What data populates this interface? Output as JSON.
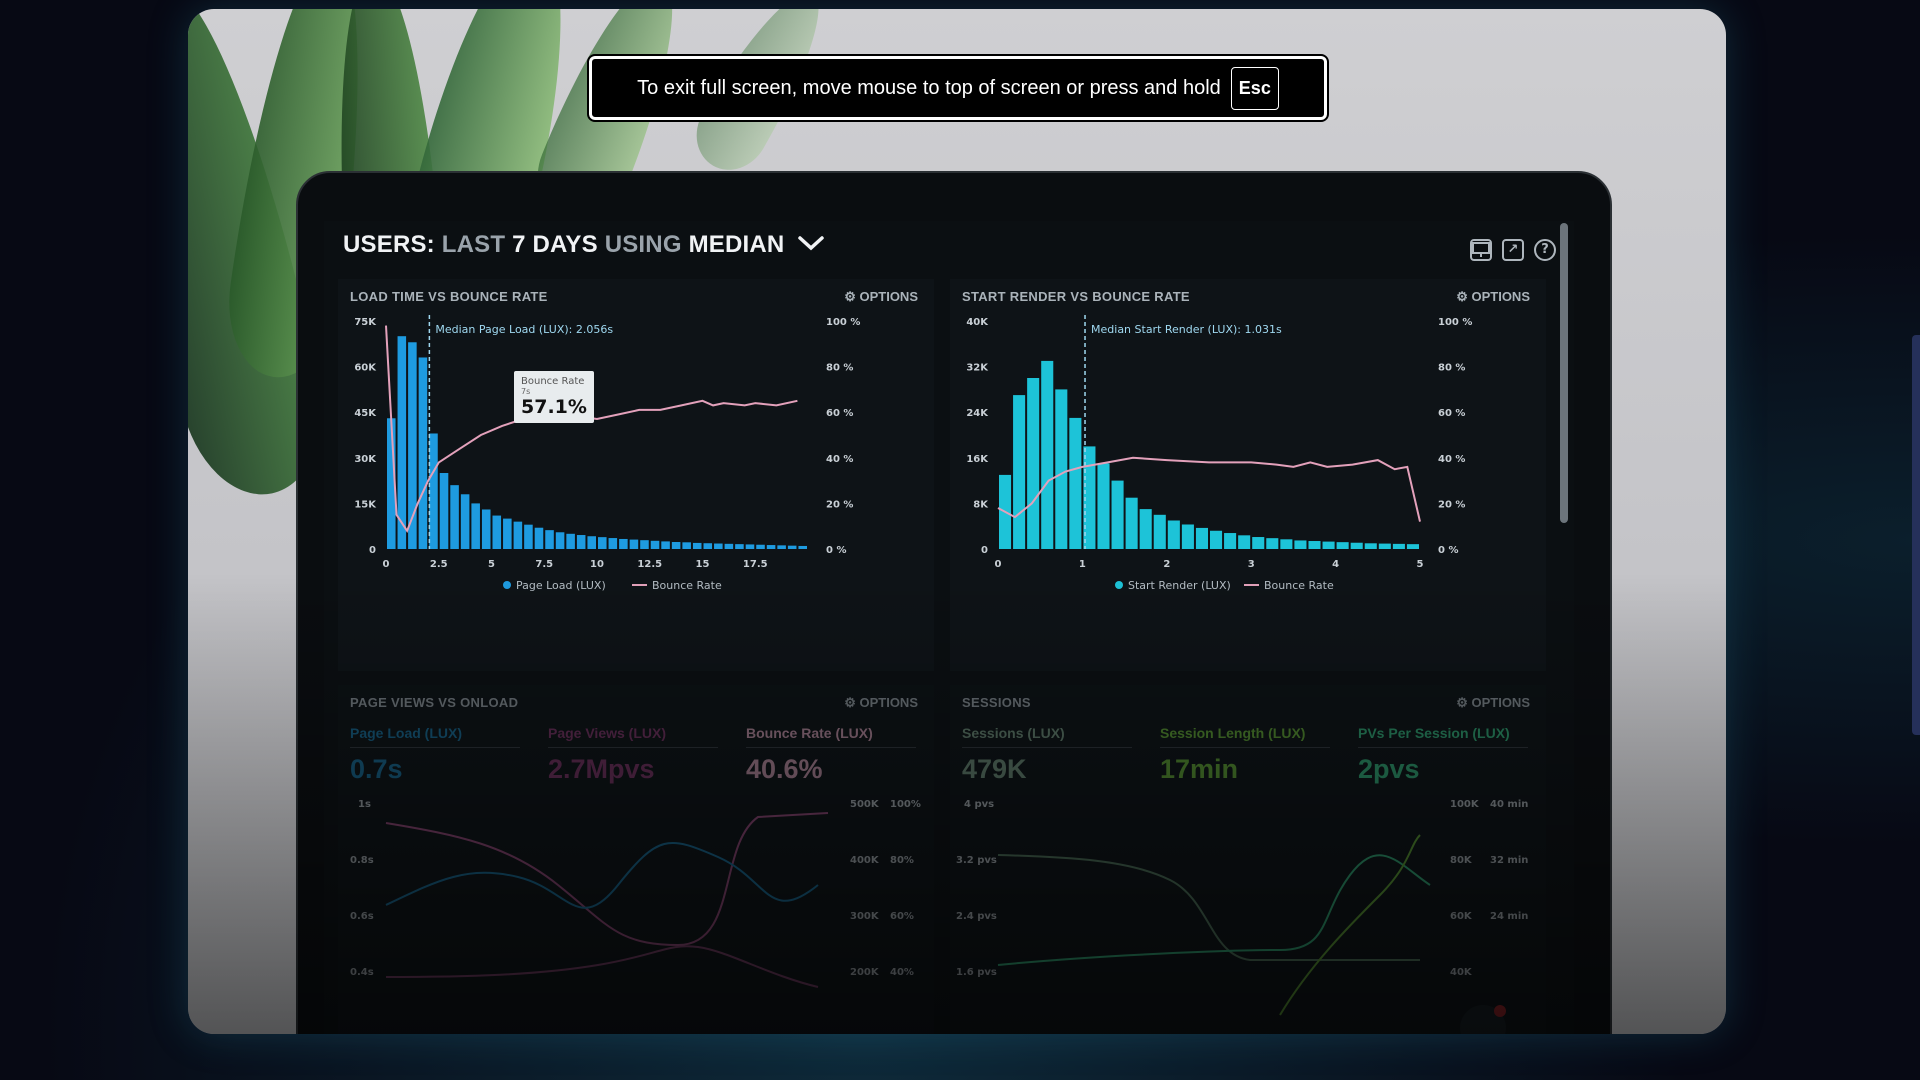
{
  "toast": {
    "message": "To exit full screen, move mouse to top of screen or press and hold",
    "key": "Esc"
  },
  "dashboard": {
    "title_prefix": "USERS:",
    "title_last": "LAST",
    "title_days": "7 DAYS",
    "title_using": "USING",
    "title_median": "MEDIAN",
    "icons": [
      "monitor-icon",
      "share-icon",
      "help-icon"
    ]
  },
  "panels": {
    "load_time": {
      "title": "LOAD TIME VS BOUNCE RATE",
      "options": "⚙ OPTIONS",
      "median_label": "Median Page Load (LUX): 2.056s",
      "tooltip": {
        "label": "Bounce Rate",
        "sub": "7s",
        "value": "57.1%"
      },
      "legend": [
        "Page Load (LUX)",
        "Bounce Rate"
      ]
    },
    "start_render": {
      "title": "START RENDER VS BOUNCE RATE",
      "options": "⚙ OPTIONS",
      "median_label": "Median Start Render (LUX): 1.031s",
      "legend": [
        "Start Render (LUX)",
        "Bounce Rate"
      ]
    },
    "page_views": {
      "title": "PAGE VIEWS VS ONLOAD",
      "options": "⚙ OPTIONS",
      "metrics": [
        {
          "label": "Page Load (LUX)",
          "value": "0.7s",
          "color": "#1a7fb0"
        },
        {
          "label": "Page Views (LUX)",
          "value": "2.7Mpvs",
          "color": "#8d3a74"
        },
        {
          "label": "Bounce Rate (LUX)",
          "value": "40.6%",
          "color": "#e0a8c0"
        }
      ],
      "left_ticks": [
        "1s",
        "0.8s",
        "0.6s",
        "0.4s"
      ],
      "right_ticks_a": [
        "500K",
        "400K",
        "300K",
        "200K"
      ],
      "right_ticks_b": [
        "100%",
        "80%",
        "60%",
        "40%"
      ]
    },
    "sessions": {
      "title": "SESSIONS",
      "options": "⚙ OPTIONS",
      "metrics": [
        {
          "label": "Sessions (LUX)",
          "value": "479K",
          "color": "#7fa38a"
        },
        {
          "label": "Session Length (LUX)",
          "value": "17min",
          "color": "#6fbf3a"
        },
        {
          "label": "PVs Per Session (LUX)",
          "value": "2pvs",
          "color": "#39c98a"
        }
      ],
      "left_ticks": [
        "4 pvs",
        "3.2 pvs",
        "2.4 pvs",
        "1.6 pvs"
      ],
      "right_ticks_a": [
        "100K",
        "80K",
        "60K",
        "40K"
      ],
      "right_ticks_b": [
        "40 min",
        "32 min",
        "24 min"
      ]
    }
  },
  "chart_data": [
    {
      "type": "bar",
      "title": "LOAD TIME VS BOUNCE RATE",
      "x_ticks": [
        "0",
        "2.5",
        "5",
        "7.5",
        "10",
        "12.5",
        "15",
        "17.5"
      ],
      "xlim": [
        0,
        20
      ],
      "y_left_ticks": [
        "0",
        "15K",
        "30K",
        "45K",
        "60K",
        "75K"
      ],
      "ylim_left": [
        0,
        75000
      ],
      "y_right_ticks": [
        "0 %",
        "20 %",
        "40 %",
        "60 %",
        "80 %",
        "100 %"
      ],
      "ylim_right": [
        0,
        100
      ],
      "median_x": 2.056,
      "series": [
        {
          "name": "Page Load (LUX)",
          "kind": "bar",
          "color": "#1e9be0",
          "values": [
            43000,
            70000,
            68000,
            63000,
            38000,
            25000,
            21000,
            18000,
            15000,
            13000,
            11000,
            10000,
            9000,
            8000,
            7000,
            6200,
            5500,
            5000,
            4600,
            4200,
            3900,
            3600,
            3300,
            3100,
            2900,
            2700,
            2500,
            2300,
            2200,
            2000,
            1900,
            1800,
            1700,
            1600,
            1500,
            1400,
            1300,
            1200,
            1100,
            1000
          ]
        },
        {
          "name": "Bounce Rate",
          "kind": "line",
          "color": "#e3a1bb",
          "points": [
            [
              0,
              98
            ],
            [
              0.5,
              15
            ],
            [
              1,
              8
            ],
            [
              1.5,
              20
            ],
            [
              2,
              30
            ],
            [
              2.5,
              38
            ],
            [
              3.5,
              44
            ],
            [
              4.5,
              50
            ],
            [
              5.5,
              54
            ],
            [
              6.5,
              57
            ],
            [
              7.5,
              58
            ],
            [
              8.5,
              59
            ],
            [
              10,
              57
            ],
            [
              11,
              59
            ],
            [
              12,
              61
            ],
            [
              13,
              61
            ],
            [
              14,
              63
            ],
            [
              15,
              65
            ],
            [
              15.5,
              63
            ],
            [
              16,
              64
            ],
            [
              17,
              63
            ],
            [
              17.5,
              64
            ],
            [
              18.5,
              63
            ],
            [
              19.5,
              65
            ]
          ]
        }
      ],
      "legend_position": "bottom"
    },
    {
      "type": "bar",
      "title": "START RENDER VS BOUNCE RATE",
      "x_ticks": [
        "0",
        "1",
        "2",
        "3",
        "4",
        "5"
      ],
      "xlim": [
        0,
        5
      ],
      "y_left_ticks": [
        "0",
        "8K",
        "16K",
        "24K",
        "32K",
        "40K"
      ],
      "ylim_left": [
        0,
        40000
      ],
      "y_right_ticks": [
        "0 %",
        "20 %",
        "40 %",
        "60 %",
        "80 %",
        "100 %"
      ],
      "ylim_right": [
        0,
        100
      ],
      "median_x": 1.031,
      "series": [
        {
          "name": "Start Render (LUX)",
          "kind": "bar",
          "color": "#1dc3d8",
          "values": [
            13000,
            27000,
            30000,
            33000,
            28000,
            23000,
            18000,
            15000,
            12000,
            9000,
            7000,
            6000,
            5000,
            4300,
            3700,
            3200,
            2800,
            2400,
            2100,
            1900,
            1700,
            1500,
            1400,
            1300,
            1200,
            1100,
            1000,
            950,
            900,
            850
          ]
        },
        {
          "name": "Bounce Rate",
          "kind": "line",
          "color": "#e3a1bb",
          "points": [
            [
              0,
              18
            ],
            [
              0.2,
              14
            ],
            [
              0.4,
              20
            ],
            [
              0.6,
              30
            ],
            [
              0.8,
              34
            ],
            [
              1,
              36
            ],
            [
              1.3,
              38
            ],
            [
              1.6,
              40
            ],
            [
              2,
              39
            ],
            [
              2.5,
              38
            ],
            [
              3,
              38
            ],
            [
              3.3,
              37
            ],
            [
              3.5,
              36
            ],
            [
              3.7,
              38
            ],
            [
              3.9,
              36
            ],
            [
              4.2,
              37
            ],
            [
              4.5,
              39
            ],
            [
              4.7,
              35
            ],
            [
              4.85,
              36
            ],
            [
              5.0,
              12
            ]
          ]
        }
      ],
      "legend_position": "bottom"
    }
  ]
}
